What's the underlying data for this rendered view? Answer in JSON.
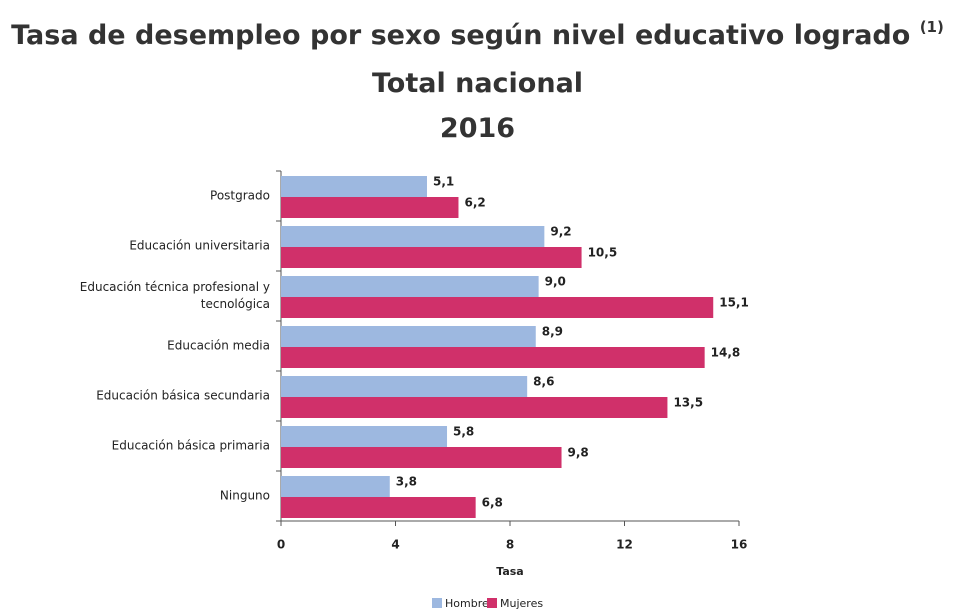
{
  "chart_data": {
    "type": "bar",
    "orientation": "horizontal",
    "title": "Tasa de desempleo por sexo según nivel educativo logrado",
    "title_note": "(1)",
    "subtitle": "Total nacional",
    "year": "2016",
    "categories": [
      "Postgrado",
      "Educación universitaria",
      "Educación técnica profesional y tecnológica",
      "Educación media",
      "Educación básica secundaria",
      "Educación básica primaria",
      "Ninguno"
    ],
    "series": [
      {
        "name": "Hombres",
        "color": "#9db8e0",
        "values": [
          5.1,
          9.2,
          9.0,
          8.9,
          8.6,
          5.8,
          3.8
        ],
        "value_labels": [
          "5,1",
          "9,2",
          "9,0",
          "8,9",
          "8,6",
          "5,8",
          "3,8"
        ]
      },
      {
        "name": "Mujeres",
        "color": "#d0306a",
        "values": [
          6.2,
          10.5,
          15.1,
          14.8,
          13.5,
          9.8,
          6.8
        ],
        "value_labels": [
          "6,2",
          "10,5",
          "15,1",
          "14,8",
          "13,5",
          "9,8",
          "6,8"
        ]
      }
    ],
    "xlabel": "Tasa",
    "xlim": [
      0,
      16
    ],
    "xticks": [
      0,
      4,
      8,
      12,
      16
    ],
    "grid": false,
    "legend": "bottom"
  }
}
